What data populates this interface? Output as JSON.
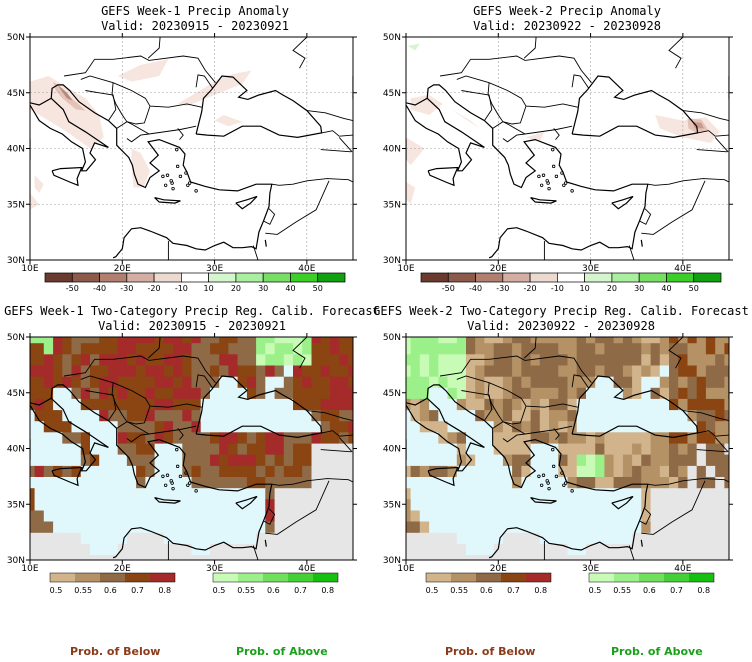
{
  "panels": [
    {
      "title1": "GEFS Week-1 Precip Anomaly",
      "title2": "Valid: 20230915 - 20230921"
    },
    {
      "title1": "GEFS Week-2 Precip Anomaly",
      "title2": "Valid: 20230922 - 20230928"
    },
    {
      "title1": "GEFS Week-1 Two-Category Precip Reg. Calib. Forecast",
      "title2": "Valid: 20230915 - 20230921"
    },
    {
      "title1": "GEFS Week-2 Two-Category Precip Reg. Calib. Forecast",
      "title2": "Valid: 20230922 - 20230928"
    }
  ],
  "map_axes": {
    "lon_labels": [
      "10E",
      "20E",
      "30E",
      "40E"
    ],
    "lat_labels": [
      "50N",
      "45N",
      "40N",
      "35N",
      "30N"
    ],
    "lon_range": [
      10,
      45
    ],
    "lat_range": [
      30,
      50
    ]
  },
  "anomaly_colorbar": {
    "labels": [
      "-50",
      "-40",
      "-30",
      "-20",
      "-10",
      "10",
      "20",
      "30",
      "40",
      "50"
    ],
    "colors": [
      "#6b3a2e",
      "#8c5a4a",
      "#b07f70",
      "#d4aea2",
      "#ecd9d0",
      "#ffffff",
      "#d5f5cf",
      "#aaeea0",
      "#77e064",
      "#3ccf28",
      "#10a010"
    ]
  },
  "below_colorbar": {
    "labels": [
      "0.5",
      "0.55",
      "0.6",
      "0.7",
      "0.8"
    ],
    "colors": [
      "#d2b48c",
      "#b49266",
      "#8f6a47",
      "#8b4513",
      "#a52a2a"
    ]
  },
  "above_colorbar": {
    "labels": [
      "0.5",
      "0.55",
      "0.6",
      "0.7",
      "0.8"
    ],
    "colors": [
      "#c8fcb6",
      "#9cf08a",
      "#70e05c",
      "#44d036",
      "#16c010"
    ]
  },
  "legend": {
    "below": "Prob. of Below",
    "above": "Prob. of Above",
    "below_color": "#8b3a1a",
    "above_color": "#1aa01a"
  },
  "colors": {
    "sea": "#e0f8fc",
    "nodata": "#e6e6e6",
    "coast": "#000000",
    "grid": "#a0a0a0"
  }
}
